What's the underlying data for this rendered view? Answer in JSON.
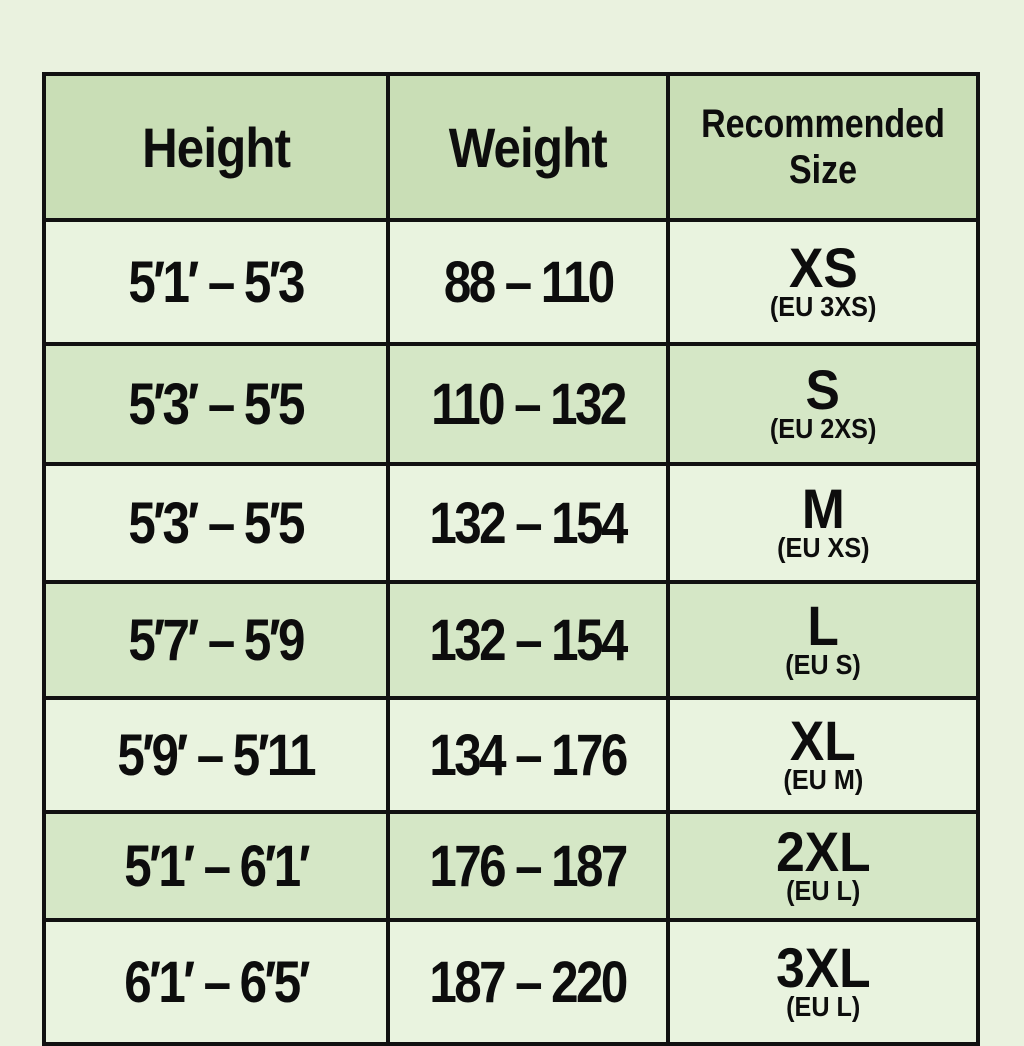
{
  "headers": {
    "height": "Height",
    "weight": "Weight",
    "size": "Recommended Size"
  },
  "rows": [
    {
      "height": "5′1′ – 5′3",
      "weight": "88 – 110",
      "size": "XS",
      "eu": "(EU 3XS)"
    },
    {
      "height": "5′3′ – 5′5",
      "weight": "110 – 132",
      "size": "S",
      "eu": "(EU 2XS)"
    },
    {
      "height": "5′3′ – 5′5",
      "weight": "132 – 154",
      "size": "M",
      "eu": "(EU XS)"
    },
    {
      "height": "5′7′ – 5′9",
      "weight": "132 – 154",
      "size": "L",
      "eu": "(EU S)"
    },
    {
      "height": "5′9′ – 5′11",
      "weight": "134 – 176",
      "size": "XL",
      "eu": "(EU M)"
    },
    {
      "height": "5′1′ – 6′1′",
      "weight": "176 – 187",
      "size": "2XL",
      "eu": "(EU L)"
    },
    {
      "height": "6′1′ – 6′5′",
      "weight": "187 – 220",
      "size": "3XL",
      "eu": "(EU L)"
    }
  ],
  "colors": {
    "background": "#eaf2df",
    "header": "#c9deb6",
    "row_light": "#e9f3df",
    "row_dark": "#d5e7c6",
    "border": "#111111"
  }
}
